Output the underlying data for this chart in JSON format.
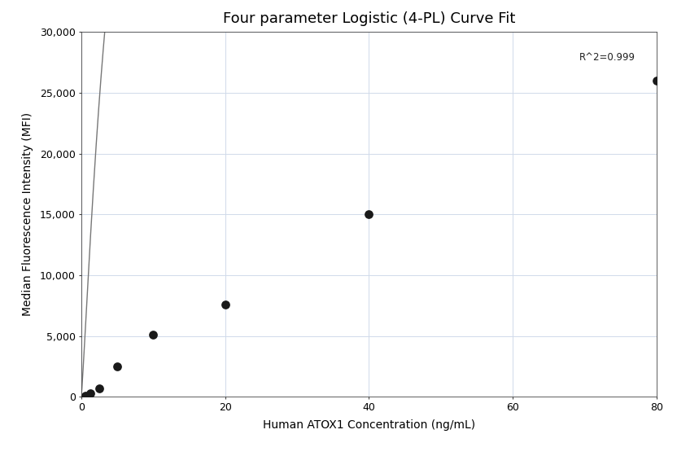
{
  "title": "Four parameter Logistic (4-PL) Curve Fit",
  "xlabel": "Human ATOX1 Concentration (ng/mL)",
  "ylabel": "Median Fluorescence Intensity (MFI)",
  "data_x": [
    0.625,
    1.25,
    2.5,
    5.0,
    10.0,
    20.0,
    40.0,
    80.0
  ],
  "data_y": [
    100,
    300,
    700,
    2500,
    5100,
    7600,
    15000,
    26000
  ],
  "xlim": [
    0,
    80
  ],
  "ylim": [
    0,
    30000
  ],
  "xticks": [
    0,
    20,
    40,
    60,
    80
  ],
  "yticks": [
    0,
    5000,
    10000,
    15000,
    20000,
    25000,
    30000
  ],
  "r_squared": "R^2=0.999",
  "dot_color": "#1a1a1a",
  "dot_size": 60,
  "line_color": "#777777",
  "grid_color": "#d0daea",
  "background_color": "#ffffff",
  "title_fontsize": 13,
  "label_fontsize": 10,
  "tick_fontsize": 9
}
